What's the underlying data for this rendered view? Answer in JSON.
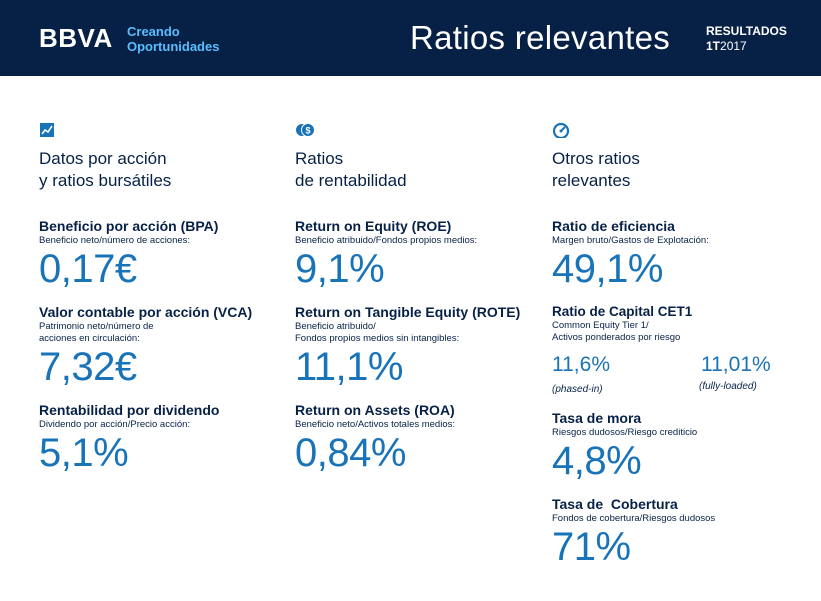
{
  "header": {
    "brand": "BBVA",
    "tagline_line1": "Creando",
    "tagline_line2": "Oportunidades",
    "title": "Ratios relevantes",
    "report_label": "RESULTADOS",
    "report_period_bold": "1T",
    "report_period_year": "2017"
  },
  "colors": {
    "header_bg": "#072146",
    "accent": "#1973b8",
    "tagline": "#5bbeff"
  },
  "columns": [
    {
      "icon": "chart-line-icon",
      "title_line1": "Datos por acción",
      "title_line2": "y ratios bursátiles",
      "metrics": [
        {
          "name": "Beneficio por acción (BPA)",
          "desc": [
            "Beneficio neto/número de acciones:"
          ],
          "value": "0,17€"
        },
        {
          "name": "Valor contable por acción (VCA)",
          "desc": [
            "Patrimonio neto/número de",
            "acciones en circulación:"
          ],
          "value": "7,32€"
        },
        {
          "name": "Rentabilidad por dividendo",
          "desc": [
            "Dividendo por acción/Precio acción:"
          ],
          "value": "5,1%"
        }
      ]
    },
    {
      "icon": "coins-icon",
      "title_line1": "Ratios",
      "title_line2": "de rentabilidad",
      "metrics": [
        {
          "name": "Return on Equity (ROE)",
          "desc": [
            "Beneficio atribuido/Fondos propios medios:"
          ],
          "value": "9,1%"
        },
        {
          "name": "Return on Tangible Equity (ROTE)",
          "desc": [
            "Beneficio atribuido/",
            "Fondos propios medios sin intangibles:"
          ],
          "value": "11,1%"
        },
        {
          "name": "Return on Assets (ROA)",
          "desc": [
            "Beneficio neto/Activos totales medios:"
          ],
          "value": "0,84%"
        }
      ]
    },
    {
      "icon": "gauge-icon",
      "title_line1": "Otros ratios",
      "title_line2": "relevantes",
      "metrics": [
        {
          "name": "Ratio de eficiencia",
          "desc": [
            "Margen bruto/Gastos de Explotación:"
          ],
          "value": "49,1%"
        },
        {
          "name": "Ratio de Capital CET1",
          "desc": [
            "Common Equity Tier 1/",
            "Activos ponderados por riesgo"
          ],
          "phased_value": "11,6%",
          "phased_note": "(phased-in)",
          "fully_value": "11,01%",
          "fully_note": "(fully-loaded)"
        },
        {
          "name": "Tasa de mora",
          "desc": [
            "Riesgos dudosos/Riesgo crediticio"
          ],
          "value": "4,8%"
        },
        {
          "name": "Tasa de  Cobertura",
          "desc": [
            "Fondos de cobertura/Riesgos dudosos"
          ],
          "value": "71%"
        }
      ]
    }
  ]
}
